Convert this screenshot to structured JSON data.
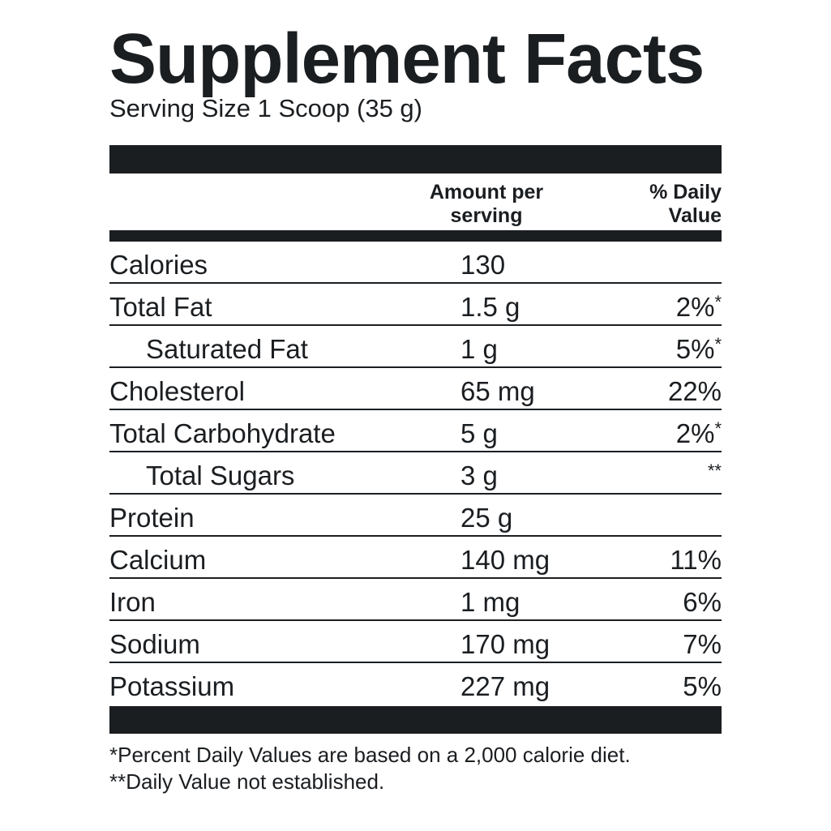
{
  "title": "Supplement Facts",
  "serving_size": "Serving Size 1 Scoop (35 g)",
  "header": {
    "amount_line1": "Amount per",
    "amount_line2": "serving",
    "dv_line1": "% Daily",
    "dv_line2": "Value"
  },
  "nutrients": [
    {
      "name": "Calories",
      "amount": "130",
      "dv": "",
      "mark": ""
    },
    {
      "name": "Total Fat",
      "amount": "1.5 g",
      "dv": "2%",
      "mark": "*"
    },
    {
      "name": "Saturated Fat",
      "amount": "1 g",
      "dv": "5%",
      "mark": "*"
    },
    {
      "name": "Cholesterol",
      "amount": "65 mg",
      "dv": "22%",
      "mark": ""
    },
    {
      "name": "Total Carbohydrate",
      "amount": "5 g",
      "dv": "2%",
      "mark": "*"
    },
    {
      "name": "Total Sugars",
      "amount": "3 g",
      "dv": "",
      "mark": "**"
    },
    {
      "name": "Protein",
      "amount": "25 g",
      "dv": "",
      "mark": ""
    },
    {
      "name": "Calcium",
      "amount": "140 mg",
      "dv": "11%",
      "mark": ""
    },
    {
      "name": "Iron",
      "amount": "1 mg",
      "dv": "6%",
      "mark": ""
    },
    {
      "name": "Sodium",
      "amount": "170 mg",
      "dv": "7%",
      "mark": ""
    },
    {
      "name": "Potassium",
      "amount": "227 mg",
      "dv": "5%",
      "mark": ""
    }
  ],
  "footnotes": {
    "line1": "*Percent Daily Values are based on a 2,000 calorie diet.",
    "line2": "**Daily Value not established."
  },
  "colors": {
    "ink": "#1b1e21",
    "background": "#ffffff"
  }
}
